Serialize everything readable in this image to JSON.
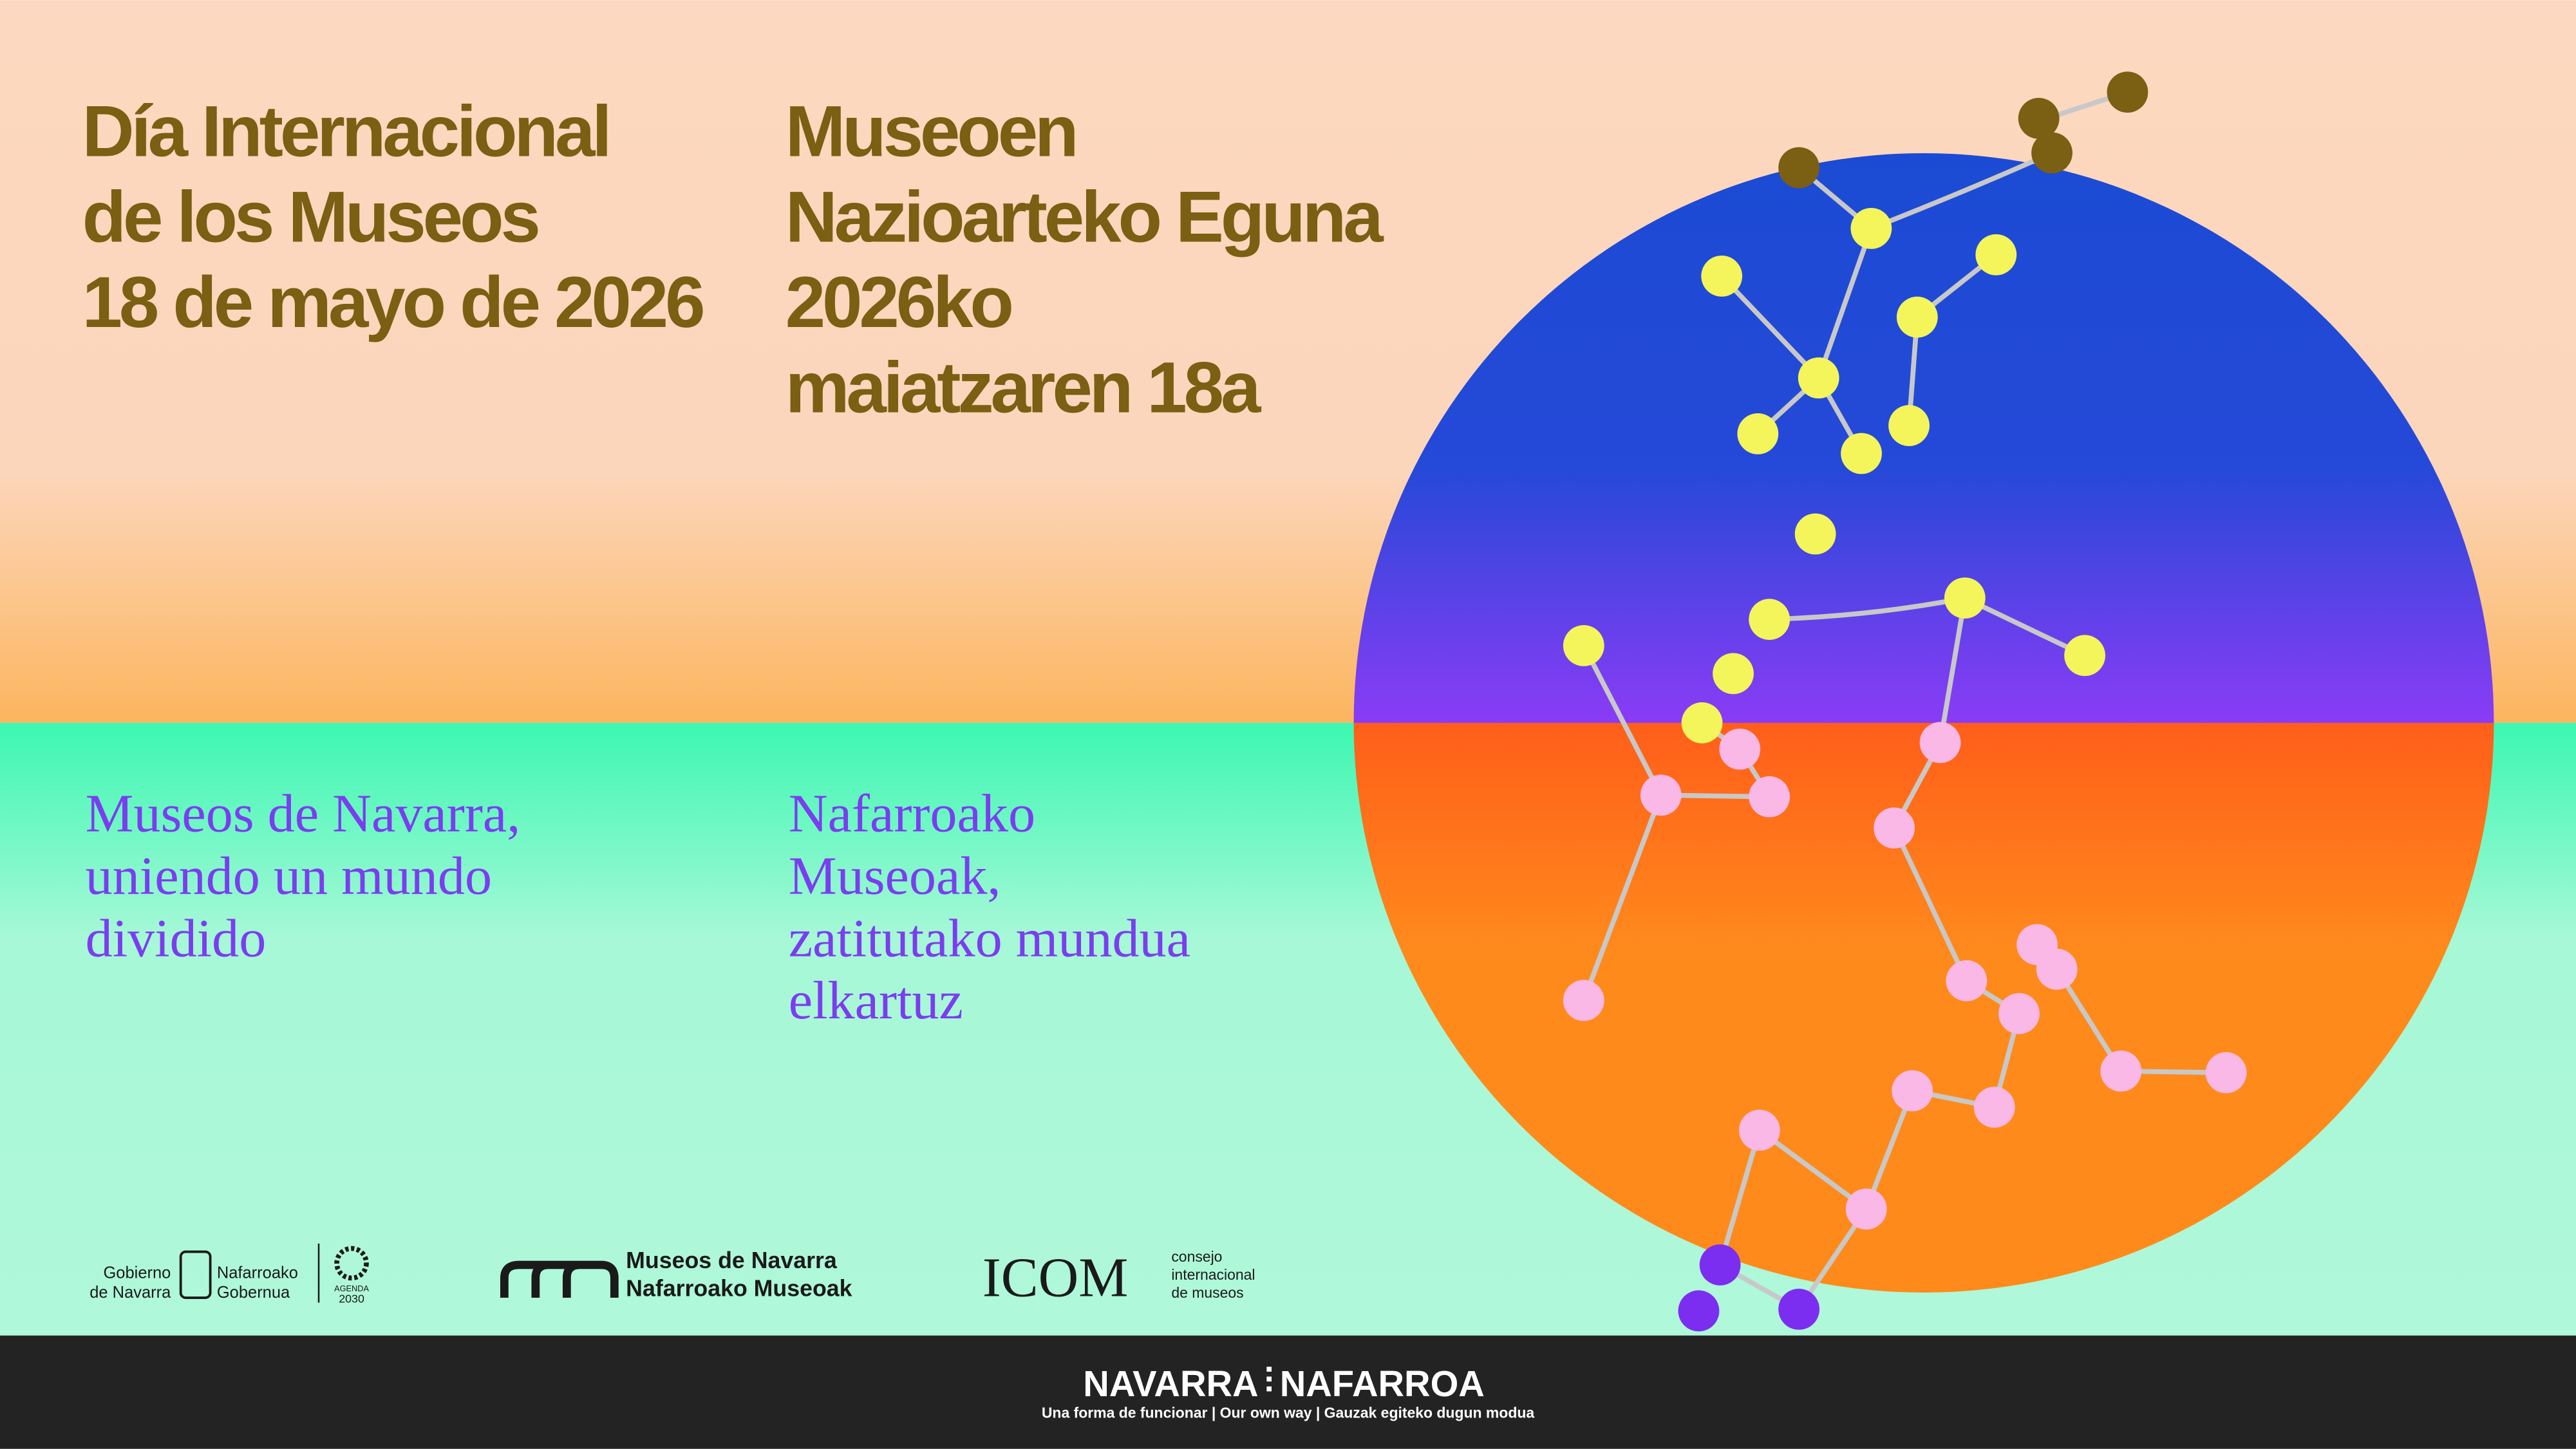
{
  "headline_es": [
    "Día Internacional",
    "de los Museos",
    "18 de mayo de 2026"
  ],
  "headline_eu": [
    "Museoen",
    "Nazioarteko Eguna",
    "2026ko",
    "maiatzaren 18a"
  ],
  "subtitle_es": [
    "Museos de Navarra,",
    "uniendo un mundo",
    "dividido"
  ],
  "subtitle_eu": [
    "Nafarroako",
    "Museoak,",
    "zatitutako mundua",
    "elkartuz"
  ],
  "logos": {
    "gobierno": [
      "Gobierno",
      "de Navarra",
      "Nafarroako",
      "Gobernua"
    ],
    "agenda": [
      "AGENDA",
      "2030"
    ],
    "museos": [
      "Museos de Navarra",
      "Nafarroako Museoak"
    ],
    "icom": {
      "mark": "ICOM",
      "text": [
        "consejo",
        "internacional",
        "de museos"
      ]
    }
  },
  "footer": {
    "left": "NAVARRA",
    "right": "NAFARROA",
    "tagline": "Una forma de funcionar | Our own way | Gauzak egiteko dugun modua"
  }
}
